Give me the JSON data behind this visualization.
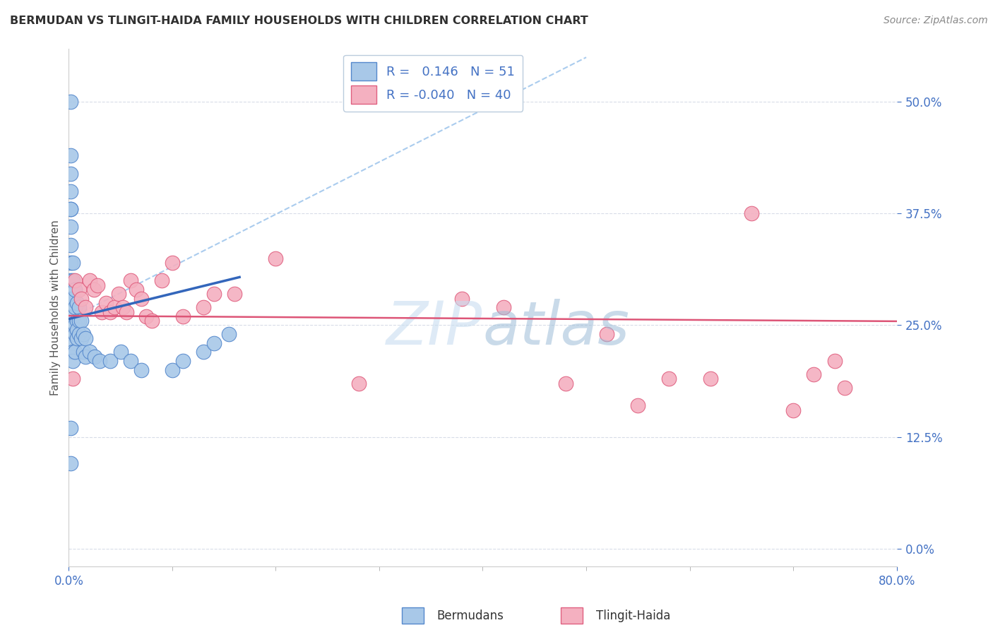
{
  "title": "BERMUDAN VS TLINGIT-HAIDA FAMILY HOUSEHOLDS WITH CHILDREN CORRELATION CHART",
  "source": "Source: ZipAtlas.com",
  "ylabel": "Family Households with Children",
  "legend_label1": "Bermudans",
  "legend_label2": "Tlingit-Haida",
  "r1": 0.146,
  "n1": 51,
  "r2": -0.04,
  "n2": 40,
  "xlim": [
    0.0,
    0.8
  ],
  "ylim": [
    -0.02,
    0.56
  ],
  "yticks": [
    0.0,
    0.125,
    0.25,
    0.375,
    0.5
  ],
  "ytick_labels": [
    "0.0%",
    "12.5%",
    "25.0%",
    "37.5%",
    "50.0%"
  ],
  "watermark_zip": "ZIP",
  "watermark_atlas": "atlas",
  "blue_color": "#a8c8e8",
  "pink_color": "#f4b0c0",
  "blue_edge_color": "#5588cc",
  "pink_edge_color": "#e06080",
  "blue_line_color": "#3366bb",
  "pink_line_color": "#dd5577",
  "dash_line_color": "#aaccee",
  "grid_color": "#d8dde8",
  "title_color": "#303030",
  "source_color": "#888888",
  "tick_color": "#4472c4",
  "blue_x": [
    0.002,
    0.002,
    0.002,
    0.002,
    0.002,
    0.002,
    0.002,
    0.002,
    0.002,
    0.002,
    0.004,
    0.004,
    0.004,
    0.004,
    0.004,
    0.004,
    0.004,
    0.004,
    0.006,
    0.006,
    0.006,
    0.006,
    0.006,
    0.008,
    0.008,
    0.008,
    0.008,
    0.01,
    0.01,
    0.01,
    0.012,
    0.012,
    0.014,
    0.014,
    0.016,
    0.016,
    0.02,
    0.025,
    0.03,
    0.04,
    0.05,
    0.002,
    0.002,
    0.06,
    0.07,
    0.1,
    0.11,
    0.13,
    0.14,
    0.155,
    0.002
  ],
  "blue_y": [
    0.5,
    0.44,
    0.42,
    0.4,
    0.38,
    0.36,
    0.34,
    0.32,
    0.3,
    0.28,
    0.32,
    0.3,
    0.28,
    0.26,
    0.24,
    0.23,
    0.22,
    0.21,
    0.29,
    0.27,
    0.25,
    0.24,
    0.22,
    0.275,
    0.255,
    0.245,
    0.235,
    0.27,
    0.255,
    0.24,
    0.255,
    0.235,
    0.24,
    0.22,
    0.235,
    0.215,
    0.22,
    0.215,
    0.21,
    0.21,
    0.22,
    0.135,
    0.095,
    0.21,
    0.2,
    0.2,
    0.21,
    0.22,
    0.23,
    0.24,
    0.38
  ],
  "pink_x": [
    0.004,
    0.006,
    0.01,
    0.012,
    0.016,
    0.02,
    0.024,
    0.028,
    0.032,
    0.036,
    0.04,
    0.044,
    0.048,
    0.052,
    0.056,
    0.06,
    0.065,
    0.07,
    0.075,
    0.08,
    0.09,
    0.1,
    0.11,
    0.13,
    0.14,
    0.16,
    0.2,
    0.28,
    0.38,
    0.42,
    0.48,
    0.52,
    0.55,
    0.58,
    0.62,
    0.66,
    0.7,
    0.72,
    0.74,
    0.75
  ],
  "pink_y": [
    0.19,
    0.3,
    0.29,
    0.28,
    0.27,
    0.3,
    0.29,
    0.295,
    0.265,
    0.275,
    0.265,
    0.27,
    0.285,
    0.27,
    0.265,
    0.3,
    0.29,
    0.28,
    0.26,
    0.255,
    0.3,
    0.32,
    0.26,
    0.27,
    0.285,
    0.285,
    0.325,
    0.185,
    0.28,
    0.27,
    0.185,
    0.24,
    0.16,
    0.19,
    0.19,
    0.375,
    0.155,
    0.195,
    0.21,
    0.18
  ]
}
